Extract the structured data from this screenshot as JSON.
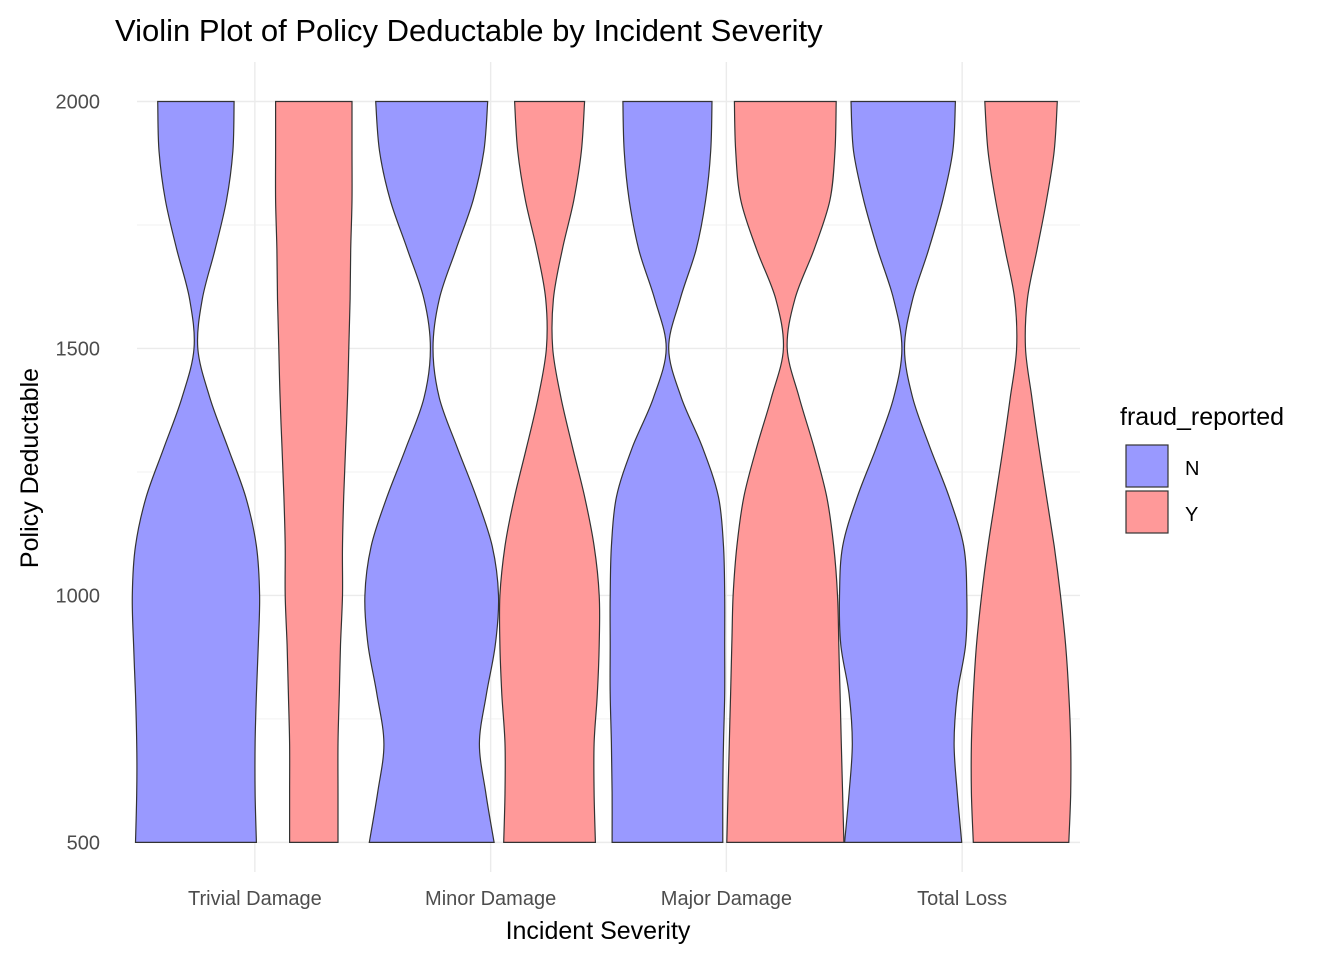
{
  "chart_data": {
    "type": "violin",
    "title": "Violin Plot of Policy Deductable by Incident Severity",
    "xlabel": "Incident Severity",
    "ylabel": "Policy Deductable",
    "categories": [
      "Trivial Damage",
      "Minor Damage",
      "Major Damage",
      "Total Loss"
    ],
    "yticks": [
      500,
      1000,
      1500,
      2000
    ],
    "ylim": [
      440,
      2080
    ],
    "grid": true,
    "legend": {
      "title": "fraud_reported",
      "placement": "right",
      "entries": [
        {
          "label": "N",
          "color": "#9999ff"
        },
        {
          "label": "Y",
          "color": "#ff9999"
        }
      ]
    },
    "density_y": [
      500,
      600,
      700,
      800,
      900,
      1000,
      1100,
      1200,
      1300,
      1400,
      1500,
      1600,
      1700,
      1800,
      1900,
      2000
    ],
    "series": [
      {
        "name": "N",
        "color": "#9999ff",
        "widths": [
          [
            0.95,
            0.93,
            0.93,
            0.95,
            0.98,
            1.0,
            0.95,
            0.78,
            0.5,
            0.22,
            0.03,
            0.1,
            0.3,
            0.48,
            0.58,
            0.6
          ],
          [
            0.98,
            0.85,
            0.75,
            0.86,
            1.0,
            1.05,
            0.95,
            0.7,
            0.4,
            0.12,
            0.02,
            0.12,
            0.38,
            0.65,
            0.82,
            0.88
          ],
          [
            0.87,
            0.87,
            0.88,
            0.9,
            0.9,
            0.9,
            0.88,
            0.8,
            0.55,
            0.22,
            0.02,
            0.2,
            0.45,
            0.6,
            0.68,
            0.7
          ],
          [
            0.92,
            0.85,
            0.8,
            0.85,
            0.98,
            1.0,
            0.95,
            0.72,
            0.42,
            0.15,
            0.02,
            0.15,
            0.4,
            0.62,
            0.78,
            0.82
          ]
        ]
      },
      {
        "name": "Y",
        "color": "#ff9999",
        "widths": [
          [
            0.38,
            0.38,
            0.38,
            0.4,
            0.42,
            0.45,
            0.45,
            0.47,
            0.5,
            0.53,
            0.55,
            0.57,
            0.58,
            0.6,
            0.6,
            0.6
          ],
          [
            0.72,
            0.7,
            0.7,
            0.75,
            0.78,
            0.78,
            0.7,
            0.55,
            0.36,
            0.18,
            0.05,
            0.06,
            0.2,
            0.38,
            0.5,
            0.55
          ],
          [
            0.92,
            0.9,
            0.88,
            0.86,
            0.84,
            0.82,
            0.76,
            0.65,
            0.45,
            0.22,
            0.03,
            0.15,
            0.45,
            0.7,
            0.78,
            0.8
          ],
          [
            0.75,
            0.78,
            0.78,
            0.75,
            0.7,
            0.62,
            0.52,
            0.4,
            0.28,
            0.17,
            0.07,
            0.1,
            0.25,
            0.4,
            0.52,
            0.57
          ]
        ]
      }
    ]
  }
}
